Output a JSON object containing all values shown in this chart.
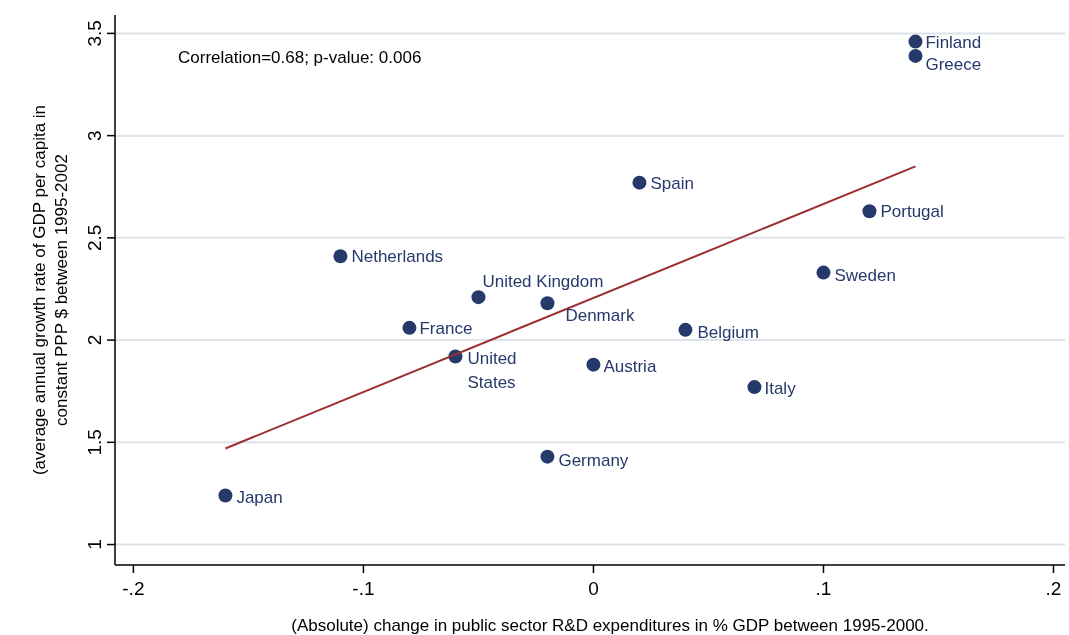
{
  "chart_data": {
    "type": "scatter",
    "xlabel": "(Absolute)  change in public sector R&D expenditures in % GDP between 1995-2000.",
    "ylabel": "(average annual growth rate of GDP per capita in constant PPP $ between 1995-2002",
    "xlim": [
      -0.208,
      0.205
    ],
    "xticks": [
      {
        "value": -0.2,
        "label": "-.2"
      },
      {
        "value": -0.1,
        "label": "-.1"
      },
      0,
      {
        "value": 0.1,
        "label": ".1"
      },
      {
        "value": 0.2,
        "label": ".2"
      }
    ],
    "ylim": [
      0.9,
      3.59
    ],
    "yticks": [
      1,
      1.5,
      2,
      2.5,
      3,
      3.5
    ],
    "grid": "y",
    "series": [
      {
        "color": "#26396b",
        "marker": "circle",
        "x": [
          0.14,
          0.14,
          0.02,
          0.12,
          -0.11,
          0.1,
          -0.05,
          -0.02,
          -0.08,
          0.04,
          -0.06,
          0,
          0.07,
          -0.02,
          -0.16
        ],
        "values": [
          3.46,
          3.39,
          2.77,
          2.63,
          2.41,
          2.33,
          2.21,
          2.18,
          2.06,
          2.05,
          1.92,
          1.88,
          1.77,
          1.43,
          1.24
        ]
      },
      {
        "type": "line",
        "color": "#9b2f33",
        "line_style": "solid",
        "x": [
          -0.16,
          0.14
        ],
        "values": [
          1.47,
          2.85
        ]
      }
    ],
    "annotations": [
      "Correlation=0.68; p-value: 0.006",
      {
        "text": "Finland",
        "x": 0.14,
        "y": 3.46
      },
      {
        "text": "Greece",
        "x": 0.14,
        "y": 3.39
      },
      {
        "text": "Spain",
        "x": 0.02,
        "y": 2.77
      },
      {
        "text": "Portugal",
        "x": 0.12,
        "y": 2.63
      },
      {
        "text": "Netherlands",
        "x": -0.11,
        "y": 2.41
      },
      {
        "text": "Sweden",
        "x": 0.1,
        "y": 2.33
      },
      {
        "text": "United Kingdom",
        "x": -0.05,
        "y": 2.21
      },
      {
        "text": "Denmark",
        "x": -0.02,
        "y": 2.18
      },
      {
        "text": "France",
        "x": -0.08,
        "y": 2.06
      },
      {
        "text": "Belgium",
        "x": 0.04,
        "y": 2.05
      },
      {
        "text": "United States",
        "x": -0.06,
        "y": 1.92
      },
      {
        "text": "Austria",
        "x": 0,
        "y": 1.88
      },
      {
        "text": "Italy",
        "x": 0.07,
        "y": 1.77
      },
      {
        "text": "Germany",
        "x": -0.02,
        "y": 1.43
      },
      {
        "text": "Japan",
        "x": -0.16,
        "y": 1.24
      }
    ]
  }
}
